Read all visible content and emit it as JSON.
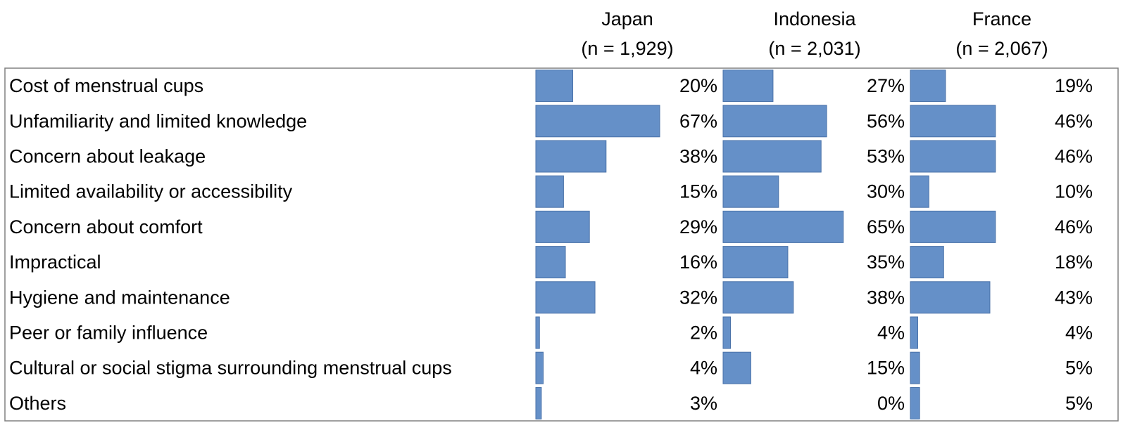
{
  "chart_data": {
    "type": "bar",
    "orientation": "horizontal",
    "categories": [
      "Cost of menstrual cups",
      "Unfamiliarity and limited knowledge",
      "Concern about leakage",
      "Limited availability or accessibility",
      "Concern about comfort",
      "Impractical",
      "Hygiene and maintenance",
      "Peer or family influence",
      "Cultural or social stigma surrounding menstrual cups",
      "Others"
    ],
    "series": [
      {
        "name": "Japan",
        "sample": "(n = 1,929)",
        "values": [
          20,
          67,
          38,
          15,
          29,
          16,
          32,
          2,
          4,
          3
        ],
        "labels": [
          "20%",
          "67%",
          "38%",
          "15%",
          "29%",
          "16%",
          "32%",
          "2%",
          "4%",
          "3%"
        ]
      },
      {
        "name": "Indonesia",
        "sample": "(n = 2,031)",
        "values": [
          27,
          56,
          53,
          30,
          65,
          35,
          38,
          4,
          15,
          0
        ],
        "labels": [
          "27%",
          "56%",
          "53%",
          "30%",
          "65%",
          "35%",
          "38%",
          "4%",
          "15%",
          "0%"
        ]
      },
      {
        "name": "France",
        "sample": "(n = 2,067)",
        "values": [
          19,
          46,
          46,
          10,
          46,
          18,
          43,
          4,
          5,
          5
        ],
        "labels": [
          "19%",
          "46%",
          "46%",
          "10%",
          "46%",
          "18%",
          "43%",
          "4%",
          "5%",
          "5%"
        ]
      }
    ],
    "value_unit": "%",
    "xlim": [
      0,
      100
    ],
    "colors": {
      "bar": "#6590c8",
      "bar_stroke": "#4a72a8",
      "border": "#808080"
    },
    "grid": false,
    "legend": "none"
  }
}
